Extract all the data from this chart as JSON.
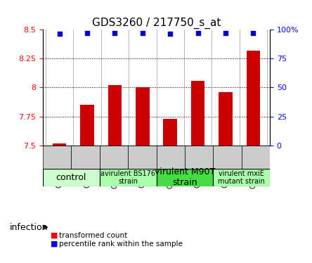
{
  "title": "GDS3260 / 217750_s_at",
  "samples": [
    "GSM213913",
    "GSM213914",
    "GSM213915",
    "GSM213916",
    "GSM213917",
    "GSM213918",
    "GSM213919",
    "GSM213920"
  ],
  "bar_values": [
    7.52,
    7.85,
    8.02,
    8.0,
    7.73,
    8.06,
    7.96,
    8.32
  ],
  "percentile_display": [
    96,
    97,
    97,
    97,
    96,
    97,
    97,
    97
  ],
  "ylim_left": [
    7.5,
    8.5
  ],
  "ylim_right": [
    0,
    100
  ],
  "yticks_left": [
    7.5,
    7.75,
    8.0,
    8.25,
    8.5
  ],
  "yticks_right": [
    0,
    25,
    50,
    75,
    100
  ],
  "bar_color": "#cc0000",
  "dot_color": "#0000cc",
  "groups": [
    {
      "label": "control",
      "start": 0,
      "end": 2,
      "color": "#ccffcc",
      "fontsize": 9
    },
    {
      "label": "avirulent BS176\nstrain",
      "start": 2,
      "end": 4,
      "color": "#aaffaa",
      "fontsize": 7
    },
    {
      "label": "virulent M90T\nstrain",
      "start": 4,
      "end": 6,
      "color": "#44dd44",
      "fontsize": 9
    },
    {
      "label": "virulent mxiE\nmutant strain",
      "start": 6,
      "end": 8,
      "color": "#aaffaa",
      "fontsize": 7
    }
  ],
  "xlabel_infection": "infection",
  "legend_red_label": "transformed count",
  "legend_blue_label": "percentile rank within the sample",
  "background_color": "#ffffff",
  "bar_bottom": 7.5,
  "ytick_left_labels": [
    "7.5",
    "7.75",
    "8",
    "8.25",
    "8.5"
  ],
  "ytick_right_labels": [
    "0",
    "25",
    "50",
    "75",
    "100%"
  ]
}
